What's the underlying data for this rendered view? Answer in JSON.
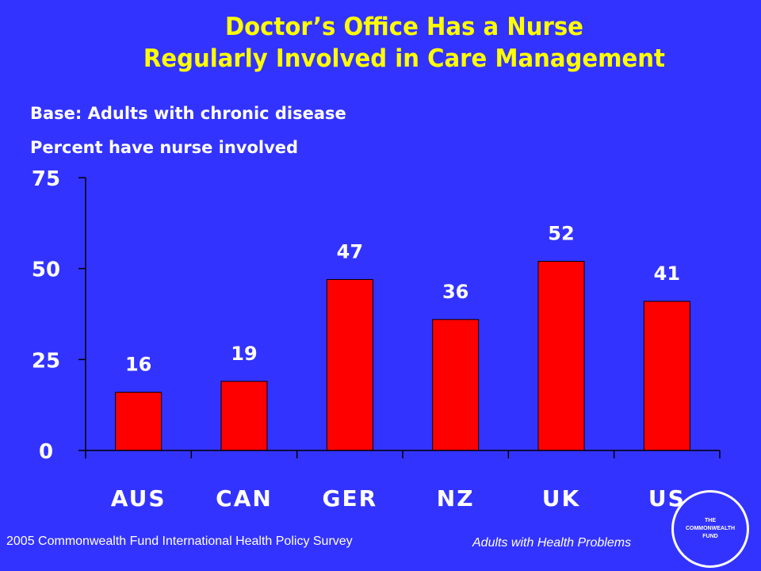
{
  "title": {
    "line1": "Doctor’s Office Has a Nurse",
    "line2": "Regularly Involved in Care Management"
  },
  "base_label": "Base: Adults with chronic disease",
  "unit_label": "Percent have nurse involved",
  "footer": {
    "source": "2005 Commonwealth Fund International Health Policy Survey",
    "population": "Adults with Health Problems"
  },
  "logo": {
    "line1": "THE",
    "line2": "COMMONWEALTH",
    "line3": "FUND"
  },
  "colors": {
    "background": "#3333ff",
    "title": "#ffff00",
    "bar": "#ff0000",
    "text": "#ffffff"
  },
  "chart_data": {
    "type": "bar",
    "categories": [
      "AUS",
      "CAN",
      "GER",
      "NZ",
      "UK",
      "US"
    ],
    "values": [
      16,
      19,
      47,
      36,
      52,
      41
    ],
    "title": "Doctor’s Office Has a Nurse Regularly Involved in Care Management",
    "ylabel": "Percent have nurse involved",
    "ylim": [
      0,
      75
    ],
    "yticks": [
      0,
      25,
      50,
      75
    ],
    "data_labels": true,
    "grid": false,
    "legend": "none"
  }
}
